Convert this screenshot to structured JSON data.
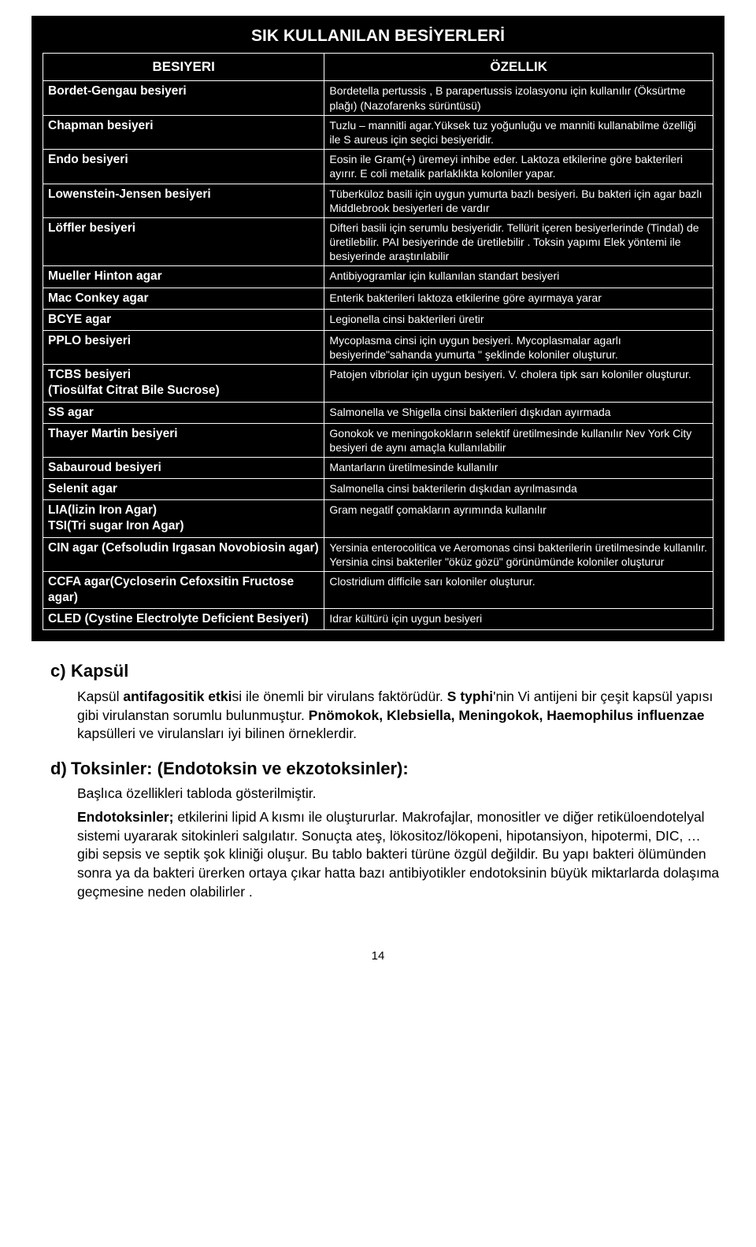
{
  "table": {
    "title": "SIK KULLANILAN BESİYERLERİ",
    "headers": {
      "left": "BESIYERI",
      "right": "ÖZELLIK"
    },
    "rows": [
      {
        "l": "Bordet-Gengau besiyeri",
        "r": "Bordetella pertussis , B parapertussis izolasyonu için kullanılır (Öksürtme plağı) (Nazofarenks sürüntüsü)"
      },
      {
        "l": "Chapman besiyeri",
        "r": "Tuzlu – mannitli agar.Yüksek tuz yoğunluğu ve manniti kullanabilme özelliği ile S aureus için seçici besiyeridir."
      },
      {
        "l": "Endo besiyeri",
        "r": "Eosin ile Gram(+) üremeyi inhibe eder. Laktoza etkilerine göre bakterileri ayırır. E coli metalik parlaklıkta koloniler yapar."
      },
      {
        "l": "Lowenstein-Jensen besiyeri",
        "r": "Tüberküloz basili için uygun yumurta bazlı besiyeri. Bu bakteri için agar bazlı Middlebrook besiyerleri de vardır"
      },
      {
        "l": "Löffler besiyeri",
        "r": "Difteri basili için serumlu besiyeridir. Tellürit içeren besiyerlerinde (Tindal) de üretilebilir. PAI besiyerinde de üretilebilir . Toksin yapımı Elek yöntemi ile besiyerinde araştırılabilir"
      },
      {
        "l": "Mueller Hinton agar",
        "r": "Antibiyogramlar için kullanılan standart besiyeri"
      },
      {
        "l": "Mac Conkey agar",
        "r": "Enterik bakterileri laktoza etkilerine göre ayırmaya yarar"
      },
      {
        "l": "BCYE agar",
        "r": "Legionella cinsi bakterileri üretir"
      },
      {
        "l": "PPLO besiyeri",
        "r": "Mycoplasma cinsi için uygun besiyeri. Mycoplasmalar agarlı besiyerinde\"sahanda yumurta \" şeklinde koloniler oluşturur."
      },
      {
        "l": "TCBS besiyeri\n(Tiosülfat Citrat Bile Sucrose)",
        "r": "Patojen vibriolar için uygun besiyeri. V. cholera tipk sarı koloniler oluşturur."
      },
      {
        "l": "SS agar",
        "r": "Salmonella ve Shigella cinsi bakterileri dışkıdan ayırmada"
      },
      {
        "l": "Thayer Martin besiyeri",
        "r": "Gonokok ve meningokokların selektif üretilmesinde kullanılır Nev York City besiyeri de aynı amaçla kullanılabilir"
      },
      {
        "l": "Sabauroud besiyeri",
        "r": "Mantarların üretilmesinde kullanılır"
      },
      {
        "l": "Selenit agar",
        "r": "Salmonella cinsi bakterilerin dışkıdan ayrılmasında"
      },
      {
        "l": "LIA(lizin Iron Agar)\nTSI(Tri sugar Iron Agar)",
        "r": "Gram negatif çomakların ayrımında kullanılır"
      },
      {
        "l": "CIN agar (Cefsoludin Irgasan Novobiosin agar)",
        "r": "Yersinia enterocolitica ve Aeromonas cinsi bakterilerin üretilmesinde kullanılır. Yersinia cinsi bakteriler \"öküz gözü\" görünümünde koloniler oluşturur"
      },
      {
        "l": "CCFA agar(Cycloserin Cefoxsitin Fructose agar)",
        "r": "Clostridium difficile sarı koloniler oluşturur."
      },
      {
        "l": "CLED (Cystine Electrolyte Deficient Besiyeri)",
        "r": "Idrar kültürü için uygun besiyeri"
      }
    ]
  },
  "sections": {
    "c": {
      "letter": "c)",
      "title": "Kapsül",
      "p1a": "Kapsül ",
      "p1b": "antifagositik etki",
      "p1c": "si ile önemli bir virulans faktörüdür. ",
      "p1d": "S typhi",
      "p1e": "'nin Vi antijeni bir çeşit kapsül yapısı gibi virulanstan sorumlu bulunmuştur. ",
      "p1f": "Pnömokok, Klebsiella, Meningokok, Haemophilus influenzae",
      "p1g": " kapsülleri ve virulansları iyi bilinen örneklerdir."
    },
    "d": {
      "letter": "d)",
      "title": "Toksinler: (Endotoksin ve ekzotoksinler):",
      "p1": "Başlıca özellikleri tabloda gösterilmiştir.",
      "p2a": "Endotoksinler;",
      "p2b": " etkilerini lipid A kısmı ile oluştururlar. Makrofajlar, monositler ve diğer retiküloendotelyal sistemi uyararak sitokinleri salgılatır. Sonuçta ateş, lökositoz/lökopeni, hipotansiyon, hipotermi, DIC, …  gibi sepsis ve septik şok kliniği oluşur.  Bu tablo bakteri türüne özgül değildir. Bu yapı bakteri ölümünden sonra ya da bakteri ürerken ortaya çıkar hatta bazı antibiyotikler endotoksinin büyük miktarlarda dolaşıma geçmesine neden olabilirler ."
    }
  },
  "pageNumber": "14"
}
